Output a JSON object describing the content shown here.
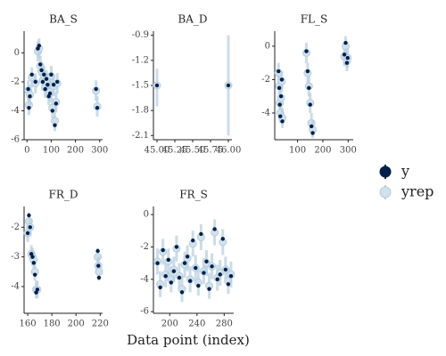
{
  "xlabel": "Data point (index)",
  "chart_data": [
    {
      "type": "intervals",
      "title": "BA_S",
      "xlim": [
        -12,
        312
      ],
      "xticks": [
        0,
        100,
        200,
        300
      ],
      "ylim": [
        -6,
        1.5
      ],
      "yticks": [
        -6,
        -4,
        -2,
        0
      ],
      "x": [
        5,
        8,
        12,
        20,
        35,
        45,
        50,
        55,
        60,
        65,
        70,
        75,
        80,
        85,
        90,
        95,
        100,
        105,
        110,
        115,
        120,
        125,
        285,
        290
      ],
      "series": [
        {
          "name": "y",
          "color": "#011f4b",
          "values": [
            -2.5,
            -3.8,
            -3.0,
            -1.5,
            -2,
            0.3,
            0.5,
            -0.8,
            -1.2,
            -2,
            -1.5,
            -2.5,
            -1.8,
            -2.2,
            -3,
            -2.8,
            -1.5,
            -4,
            -2.2,
            -5,
            -3.5,
            -2,
            -2.5,
            -3.8
          ]
        },
        {
          "name": "yrep",
          "color": "#b3cde0",
          "values": [
            -2.6,
            -3.6,
            -2.9,
            -1.7,
            -2.1,
            0.1,
            0.3,
            -0.9,
            -1.3,
            -1.9,
            -1.6,
            -2.4,
            -1.9,
            -2.1,
            -2.9,
            -2.7,
            -1.6,
            -3.8,
            -2.3,
            -4.7,
            -3.4,
            -2.1,
            -2.6,
            -3.7
          ],
          "low": [
            -3.3,
            -4.3,
            -3.6,
            -2.4,
            -2.8,
            -0.6,
            -0.4,
            -1.6,
            -2,
            -2.6,
            -2.3,
            -3.1,
            -2.6,
            -2.8,
            -3.6,
            -3.4,
            -2.3,
            -4.5,
            -3,
            -5.4,
            -4.1,
            -2.8,
            -3.3,
            -4.4
          ],
          "high": [
            -1.9,
            -2.9,
            -2.2,
            -1,
            -1.4,
            0.8,
            1,
            -0.2,
            -0.6,
            -1.2,
            -0.9,
            -1.7,
            -1.2,
            -1.4,
            -2.2,
            -2,
            -0.9,
            -3.1,
            -1.6,
            -4,
            -2.7,
            -1.4,
            -1.9,
            -3
          ]
        }
      ]
    },
    {
      "type": "intervals",
      "title": "BA_D",
      "xlim": [
        44.95,
        46.05
      ],
      "xticks": [
        {
          "value": 45,
          "label": "45.00"
        },
        {
          "value": 45.25,
          "label": "45.25"
        },
        {
          "value": 45.5,
          "label": "45.50"
        },
        {
          "value": 45.75,
          "label": "45.75"
        },
        {
          "value": 46,
          "label": "46.00"
        }
      ],
      "ylim": [
        -2.15,
        -0.85
      ],
      "yticks": [
        -2.1,
        -1.8,
        -1.5,
        -1.2,
        -0.9
      ],
      "x": [
        45,
        46
      ],
      "series": [
        {
          "name": "y",
          "color": "#011f4b",
          "values": [
            -1.5,
            -1.5
          ]
        },
        {
          "name": "yrep",
          "color": "#b3cde0",
          "values": [
            -1.5,
            -1.5
          ],
          "low": [
            -1.75,
            -2.1
          ],
          "high": [
            -1.3,
            -0.9
          ]
        }
      ]
    },
    {
      "type": "intervals",
      "title": "FL_S",
      "xlim": [
        10,
        320
      ],
      "xticks": [
        100,
        200,
        300
      ],
      "ylim": [
        -5.6,
        0.9
      ],
      "yticks": [
        -4,
        -2,
        0
      ],
      "x": [
        25,
        28,
        30,
        32,
        35,
        38,
        40,
        135,
        140,
        145,
        150,
        155,
        160,
        285,
        290,
        295,
        298
      ],
      "series": [
        {
          "name": "y",
          "color": "#011f4b",
          "values": [
            -1.5,
            -2.5,
            -3.5,
            -4.2,
            -3,
            -2,
            -4.5,
            -0.3,
            -1.5,
            -2.5,
            -3.5,
            -4.8,
            -5.2,
            -0.5,
            0.2,
            -1,
            -0.7
          ]
        },
        {
          "name": "yrep",
          "color": "#b3cde0",
          "values": [
            -1.6,
            -2.4,
            -3.4,
            -4.0,
            -3.1,
            -2.1,
            -4.3,
            -0.4,
            -1.6,
            -2.4,
            -3.4,
            -4.6,
            -5.0,
            -0.6,
            0.0,
            -0.9,
            -0.7
          ],
          "low": [
            -2.2,
            -3,
            -4,
            -4.6,
            -3.7,
            -2.7,
            -4.9,
            -1,
            -2.2,
            -3,
            -4,
            -5.2,
            -5.5,
            -1.2,
            -0.6,
            -1.5,
            -1.3
          ],
          "high": [
            -1,
            -1.8,
            -2.8,
            -3.4,
            -2.5,
            -1.5,
            -3.7,
            0.2,
            -1,
            -1.8,
            -2.8,
            -4,
            -4.4,
            0,
            0.6,
            -0.3,
            -0.1
          ]
        }
      ]
    },
    {
      "type": "intervals",
      "title": "FR_D",
      "xlim": [
        157,
        222
      ],
      "xticks": [
        160,
        180,
        200,
        220
      ],
      "ylim": [
        -4.9,
        -1.3
      ],
      "yticks": [
        -4,
        -3,
        -2
      ],
      "x": [
        160,
        161,
        162,
        163,
        164,
        165,
        166,
        167,
        168,
        218,
        218.5,
        219
      ],
      "series": [
        {
          "name": "y",
          "color": "#011f4b",
          "values": [
            -2.2,
            -1.6,
            -2.0,
            -2.9,
            -3.0,
            -3.2,
            -3.6,
            -4.2,
            -4.1,
            -2.8,
            -3.3,
            -3.7
          ]
        },
        {
          "name": "yrep",
          "color": "#b3cde0",
          "values": [
            -2.2,
            -1.8,
            -2.0,
            -2.9,
            -3.0,
            -3.1,
            -3.5,
            -4.1,
            -4.1,
            -3.0,
            -3.3,
            -3.5
          ],
          "low": [
            -2.5,
            -2.1,
            -2.3,
            -3.2,
            -3.3,
            -3.4,
            -3.8,
            -4.4,
            -4.4,
            -3.3,
            -3.6,
            -3.8
          ],
          "high": [
            -1.9,
            -1.5,
            -1.7,
            -2.6,
            -2.7,
            -2.8,
            -3.2,
            -3.8,
            -3.8,
            -2.7,
            -3,
            -3.2
          ]
        }
      ]
    },
    {
      "type": "intervals",
      "title": "FR_S",
      "xlim": [
        176,
        294
      ],
      "xticks": [
        200,
        240,
        280
      ],
      "ylim": [
        -6.1,
        0.5
      ],
      "yticks": [
        -6,
        -4,
        -2,
        0
      ],
      "x": [
        182,
        186,
        190,
        194,
        198,
        202,
        206,
        210,
        214,
        218,
        222,
        226,
        230,
        234,
        238,
        242,
        246,
        250,
        254,
        258,
        262,
        266,
        270,
        274,
        278,
        282,
        286,
        290
      ],
      "series": [
        {
          "name": "y",
          "color": "#011f4b",
          "values": [
            -3,
            -4.5,
            -2.2,
            -3.8,
            -2.8,
            -4.2,
            -3.5,
            -2,
            -3.9,
            -4.8,
            -3,
            -2.6,
            -4.1,
            -1.6,
            -3.3,
            -4.4,
            -1.2,
            -3.6,
            -2.9,
            -4.6,
            -3.2,
            -0.9,
            -4,
            -3.7,
            -1.5,
            -3.4,
            -4.3,
            -3.8
          ]
        },
        {
          "name": "yrep",
          "color": "#b3cde0",
          "values": [
            -2.9,
            -4.3,
            -2.3,
            -3.7,
            -2.9,
            -4.0,
            -3.4,
            -2.1,
            -3.8,
            -4.6,
            -3.1,
            -2.7,
            -4.0,
            -1.8,
            -3.3,
            -4.2,
            -1.4,
            -3.5,
            -3.0,
            -4.4,
            -3.2,
            -1.1,
            -3.9,
            -3.6,
            -1.7,
            -3.4,
            -4.1,
            -3.7
          ],
          "low": [
            -3.7,
            -5.1,
            -3.1,
            -4.5,
            -3.7,
            -4.8,
            -4.2,
            -2.9,
            -4.6,
            -5.4,
            -3.9,
            -3.5,
            -4.8,
            -2.6,
            -4.1,
            -5,
            -2.2,
            -4.3,
            -3.8,
            -5.2,
            -4,
            -1.9,
            -4.7,
            -4.4,
            -2.5,
            -4.2,
            -4.9,
            -4.5
          ],
          "high": [
            -2.1,
            -3.5,
            -1.5,
            -2.9,
            -2.1,
            -3.2,
            -2.6,
            -1.3,
            -3,
            -3.8,
            -2.3,
            -1.9,
            -3.2,
            -1,
            -2.5,
            -3.4,
            -0.6,
            -2.7,
            -2.2,
            -3.6,
            -2.4,
            -0.3,
            -3.1,
            -2.8,
            -0.9,
            -2.6,
            -3.3,
            -2.9
          ]
        }
      ]
    }
  ]
}
